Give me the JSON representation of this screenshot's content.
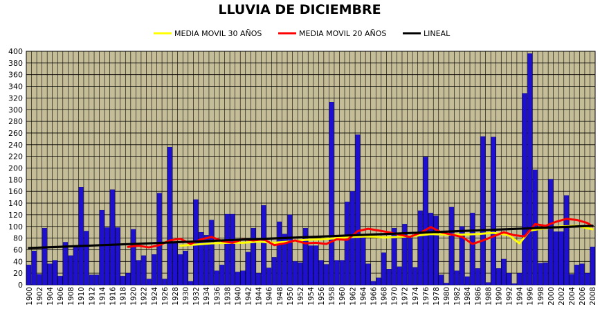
{
  "chart_data": {
    "type": "bar",
    "title": "LLUVIA DE DICIEMBRE",
    "xlabel": "",
    "ylabel": "",
    "ylim": [
      0,
      400
    ],
    "y_ticks": [
      0,
      20,
      40,
      60,
      80,
      100,
      120,
      140,
      160,
      180,
      200,
      220,
      240,
      260,
      280,
      300,
      320,
      340,
      360,
      380,
      400
    ],
    "grid": "on",
    "legend_placement": "top",
    "plot_background": "#c4bd97",
    "colors": {
      "bars": "#1f10d0",
      "ma30": "#ffff00",
      "ma20": "#ff0000",
      "linear": "#000000",
      "grid": "#000000"
    },
    "legend": [
      {
        "key": "ma30",
        "label": "MEDIA MOVIL 30 AÑOS"
      },
      {
        "key": "ma20",
        "label": "MEDIA MOVIL 20 AÑOS"
      },
      {
        "key": "linear",
        "label": "LINEAL"
      }
    ],
    "x_tick_labels": [
      "1900",
      "1902",
      "1904",
      "1906",
      "1908",
      "1910",
      "1912",
      "1914",
      "1916",
      "1918",
      "1920",
      "1922",
      "1924",
      "1926",
      "1928",
      "1930",
      "1932",
      "1934",
      "1936",
      "1938",
      "1940",
      "1942",
      "1944",
      "1946",
      "1948",
      "1950",
      "1952",
      "1954",
      "1956",
      "1958",
      "1960",
      "1962",
      "1964",
      "1966",
      "1968",
      "1970",
      "1972",
      "1974",
      "1976",
      "1978",
      "1980",
      "1982",
      "1984",
      "1986",
      "1988",
      "1990",
      "1992",
      "1994",
      "1996",
      "1998",
      "2000",
      "2002",
      "2004",
      "2006",
      "2008"
    ],
    "years": [
      1900,
      1901,
      1902,
      1903,
      1904,
      1905,
      1906,
      1907,
      1908,
      1909,
      1910,
      1911,
      1912,
      1913,
      1914,
      1915,
      1916,
      1917,
      1918,
      1919,
      1920,
      1921,
      1922,
      1923,
      1924,
      1925,
      1926,
      1927,
      1928,
      1929,
      1930,
      1931,
      1932,
      1933,
      1934,
      1935,
      1936,
      1937,
      1938,
      1939,
      1940,
      1941,
      1942,
      1943,
      1944,
      1945,
      1946,
      1947,
      1948,
      1949,
      1950,
      1951,
      1952,
      1953,
      1954,
      1955,
      1956,
      1957,
      1958,
      1959,
      1960,
      1961,
      1962,
      1963,
      1964,
      1965,
      1966,
      1967,
      1968,
      1969,
      1970,
      1971,
      1972,
      1973,
      1974,
      1975,
      1976,
      1977,
      1978,
      1979,
      1980,
      1981,
      1982,
      1983,
      1984,
      1985,
      1986,
      1987,
      1988,
      1989,
      1990,
      1991,
      1992,
      1993,
      1994,
      1995,
      1996,
      1997,
      1998,
      1999,
      2000,
      2001,
      2002,
      2003,
      2004,
      2005,
      2006,
      2007,
      2008
    ],
    "values": [
      34,
      58,
      18,
      97,
      36,
      42,
      15,
      73,
      50,
      67,
      167,
      92,
      17,
      17,
      128,
      98,
      163,
      98,
      15,
      20,
      95,
      42,
      50,
      10,
      52,
      157,
      10,
      236,
      71,
      52,
      58,
      6,
      146,
      90,
      85,
      111,
      24,
      34,
      121,
      121,
      22,
      24,
      56,
      97,
      20,
      136,
      29,
      47,
      108,
      87,
      120,
      40,
      38,
      97,
      67,
      67,
      42,
      35,
      313,
      42,
      42,
      142,
      160,
      257,
      84,
      36,
      6,
      12,
      55,
      27,
      97,
      31,
      104,
      80,
      30,
      127,
      219,
      123,
      118,
      17,
      3,
      133,
      24,
      100,
      14,
      123,
      28,
      254,
      4,
      253,
      28,
      44,
      20,
      2,
      20,
      328,
      396,
      197,
      37,
      38,
      181,
      91,
      91,
      153,
      18,
      34,
      36,
      20,
      65
    ],
    "series": [
      {
        "name": "MEDIA MOVIL 30 AÑOS",
        "key": "ma30",
        "x": [
          1929,
          1932,
          1935,
          1938,
          1941,
          1944,
          1947,
          1950,
          1953,
          1956,
          1959,
          1962,
          1965,
          1968,
          1971,
          1974,
          1977,
          1980,
          1983,
          1986,
          1989,
          1992,
          1994,
          1996,
          1999,
          2002,
          2005,
          2008
        ],
        "y": [
          67,
          69,
          71,
          72,
          72,
          74,
          72,
          74,
          77,
          78,
          80,
          82,
          83,
          81,
          82,
          84,
          87,
          86,
          86,
          87,
          89,
          85,
          71,
          93,
          97,
          100,
          101,
          95
        ]
      },
      {
        "name": "MEDIA MOVIL 20 AÑOS",
        "key": "ma20",
        "x": [
          1919,
          1921,
          1923,
          1925,
          1927,
          1929,
          1931,
          1933,
          1935,
          1937,
          1939,
          1941,
          1943,
          1945,
          1947,
          1949,
          1951,
          1953,
          1955,
          1957,
          1959,
          1961,
          1963,
          1965,
          1967,
          1969,
          1971,
          1973,
          1975,
          1977,
          1979,
          1981,
          1983,
          1985,
          1987,
          1989,
          1991,
          1993,
          1995,
          1997,
          1999,
          2001,
          2003,
          2005,
          2007,
          2008
        ],
        "y": [
          65,
          67,
          64,
          68,
          76,
          79,
          70,
          78,
          82,
          75,
          72,
          78,
          76,
          78,
          68,
          71,
          76,
          71,
          72,
          70,
          78,
          77,
          92,
          96,
          93,
          90,
          86,
          82,
          89,
          99,
          90,
          86,
          82,
          70,
          76,
          83,
          90,
          85,
          83,
          104,
          101,
          108,
          113,
          111,
          106,
          100
        ]
      },
      {
        "name": "LINEAL",
        "key": "linear",
        "x": [
          1900,
          2008
        ],
        "y": [
          63,
          101
        ]
      }
    ]
  }
}
